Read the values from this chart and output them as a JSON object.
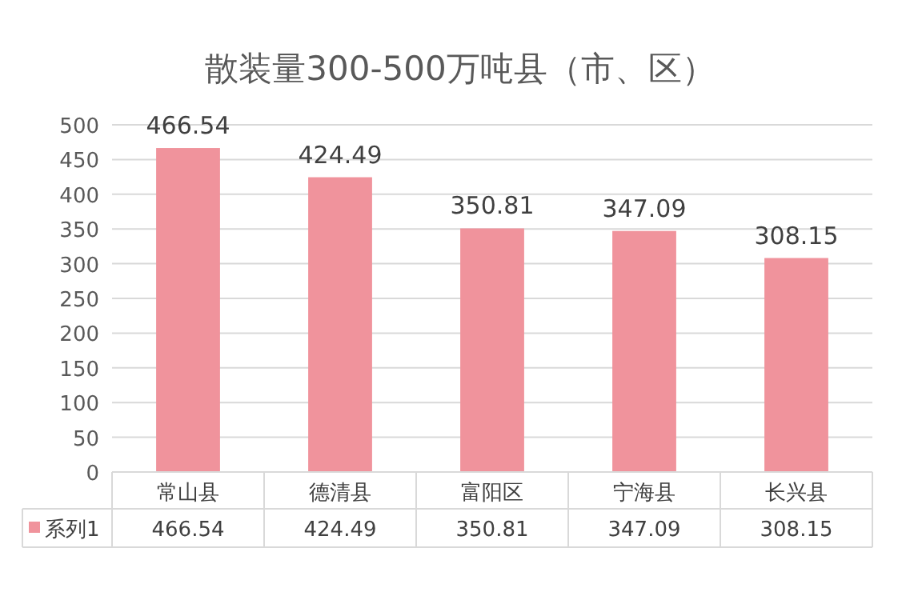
{
  "chart_data": {
    "type": "bar",
    "title": "散装量300-500万吨县（市、区）",
    "categories": [
      "常山县",
      "德清县",
      "富阳区",
      "宁海县",
      "长兴县"
    ],
    "series": [
      {
        "name": "系列1",
        "color": "#f0939c",
        "values": [
          466.54,
          424.49,
          350.81,
          347.09,
          308.15
        ],
        "value_labels": [
          "466.54",
          "424.49",
          "350.81",
          "347.09",
          "308.15"
        ]
      }
    ],
    "ylim": [
      0,
      500
    ],
    "yticks": [
      0,
      50,
      100,
      150,
      200,
      250,
      300,
      350,
      400,
      450,
      500
    ],
    "annotations": [
      "466.54",
      "424.49",
      "350.81",
      "347.09",
      "308.15"
    ],
    "grid": "y",
    "legend": "bottom"
  }
}
